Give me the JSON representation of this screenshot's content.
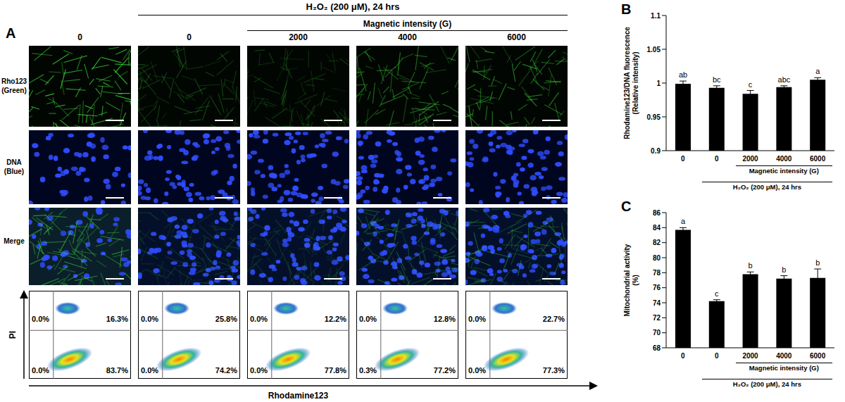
{
  "panel_labels": [
    "A",
    "B",
    "C"
  ],
  "panel_a": {
    "header": "H₂O₂ (200 μM), 24 hrs",
    "header_from": 1,
    "subheader": "Magnetic intensity (G)",
    "subheader_from": 2,
    "columns": [
      "0",
      "0",
      "2000",
      "4000",
      "6000"
    ],
    "rows": [
      "Rho123 (Green)",
      "DNA (Blue)",
      "Merge"
    ],
    "flow": {
      "x_label": "Rhodamine123",
      "y_label": "PI",
      "quadrants": [
        [
          "0.0%",
          "16.3%",
          "0.0%",
          "83.7%"
        ],
        [
          "0.0%",
          "25.8%",
          "0.0%",
          "74.2%"
        ],
        [
          "0.0%",
          "12.2%",
          "0.0%",
          "77.8%"
        ],
        [
          "0.0%",
          "12.8%",
          "0.3%",
          "77.2%"
        ],
        [
          "0.0%",
          "22.7%",
          "0.0%",
          "77.3%"
        ]
      ]
    }
  },
  "chart_data": [
    {
      "type": "bar",
      "categories": [
        "0",
        "0",
        "2000",
        "4000",
        "6000"
      ],
      "values": [
        0.999,
        0.993,
        0.984,
        0.994,
        1.005
      ],
      "errors": [
        0.004,
        0.003,
        0.005,
        0.002,
        0.003
      ],
      "annotations": [
        "ab",
        "bc",
        "c",
        "abc",
        "a"
      ],
      "ylabel": "Rhodamine123/DNA fluorescence (Relative intensity)",
      "ylim": [
        0.9,
        1.1
      ],
      "yticks": [
        0.9,
        0.95,
        1,
        1.05,
        1.1
      ],
      "color": "#000000",
      "x_groups": [
        {
          "label": "Magnetic intensity (G)",
          "from": 2,
          "to": 4
        },
        {
          "label": "H₂O₂ (200 μM), 24 hrs",
          "from": 1,
          "to": 4
        }
      ]
    },
    {
      "type": "bar",
      "categories": [
        "0",
        "0",
        "2000",
        "4000",
        "6000"
      ],
      "values": [
        83.7,
        74.2,
        77.8,
        77.2,
        77.3
      ],
      "errors": [
        0.3,
        0.2,
        0.3,
        0.4,
        1.2
      ],
      "annotations": [
        "a",
        "c",
        "b",
        "b",
        "b"
      ],
      "ylabel": "Mitochondrial activity (%)",
      "ylim": [
        68,
        86
      ],
      "yticks": [
        68,
        70,
        72,
        74,
        76,
        78,
        80,
        82,
        84,
        86
      ],
      "color": "#000000",
      "x_groups": [
        {
          "label": "Magnetic intensity (G)",
          "from": 2,
          "to": 4
        },
        {
          "label": "H₂O₂ (200 μM), 24 hrs",
          "from": 1,
          "to": 4
        }
      ]
    }
  ]
}
